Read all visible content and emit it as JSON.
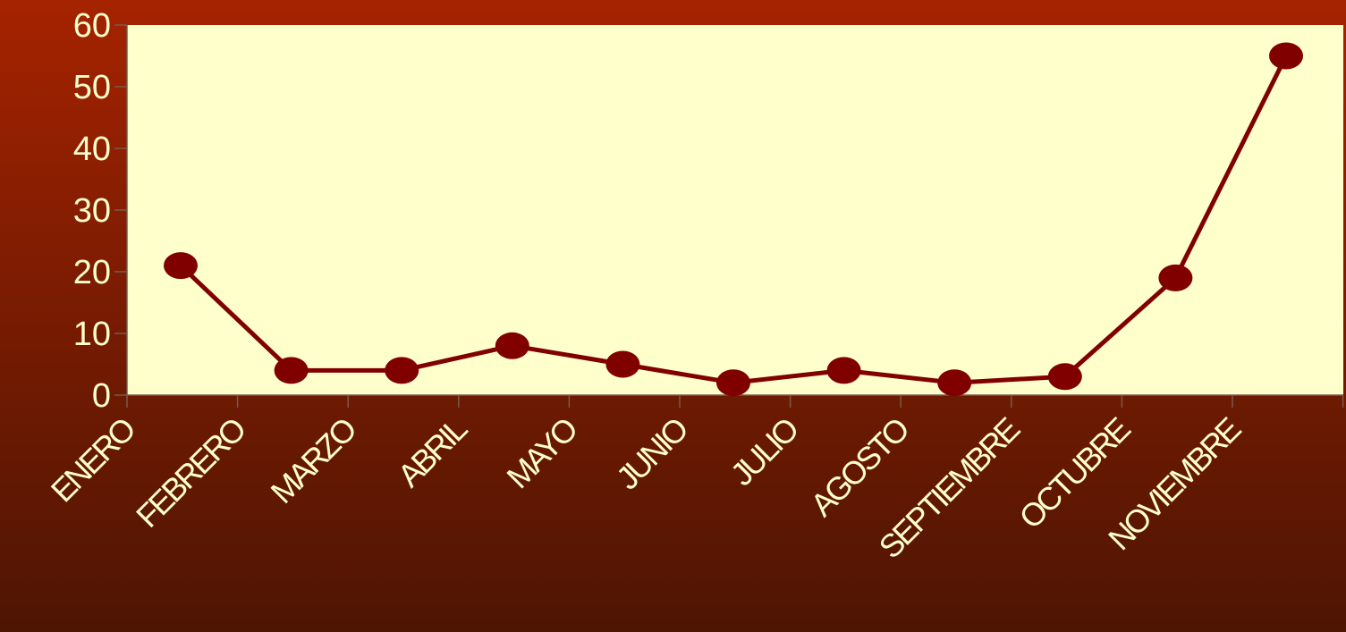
{
  "chart_data": {
    "type": "line",
    "title": "",
    "xlabel": "",
    "ylabel": "",
    "categories": [
      "ENERO",
      "FEBRERO",
      "MARZO",
      "ABRIL",
      "MAYO",
      "JUNIO",
      "JULIO",
      "AGOSTO",
      "SEPTIEMBRE",
      "OCTUBRE",
      "NOVIEMBRE"
    ],
    "series": [
      {
        "values": [
          21,
          4,
          4,
          8,
          5,
          2,
          4,
          2,
          3,
          19,
          55
        ]
      }
    ],
    "ylim": [
      0,
      60
    ],
    "yticks": [
      "0",
      "10",
      "20",
      "30",
      "40",
      "50",
      "60"
    ],
    "grid": false,
    "legend": "none",
    "colors": {
      "plot_background": "#ffffcc",
      "line": "#800000",
      "marker": "#800000",
      "text": "#ffffcc",
      "axis": "#7a5a4a"
    }
  }
}
